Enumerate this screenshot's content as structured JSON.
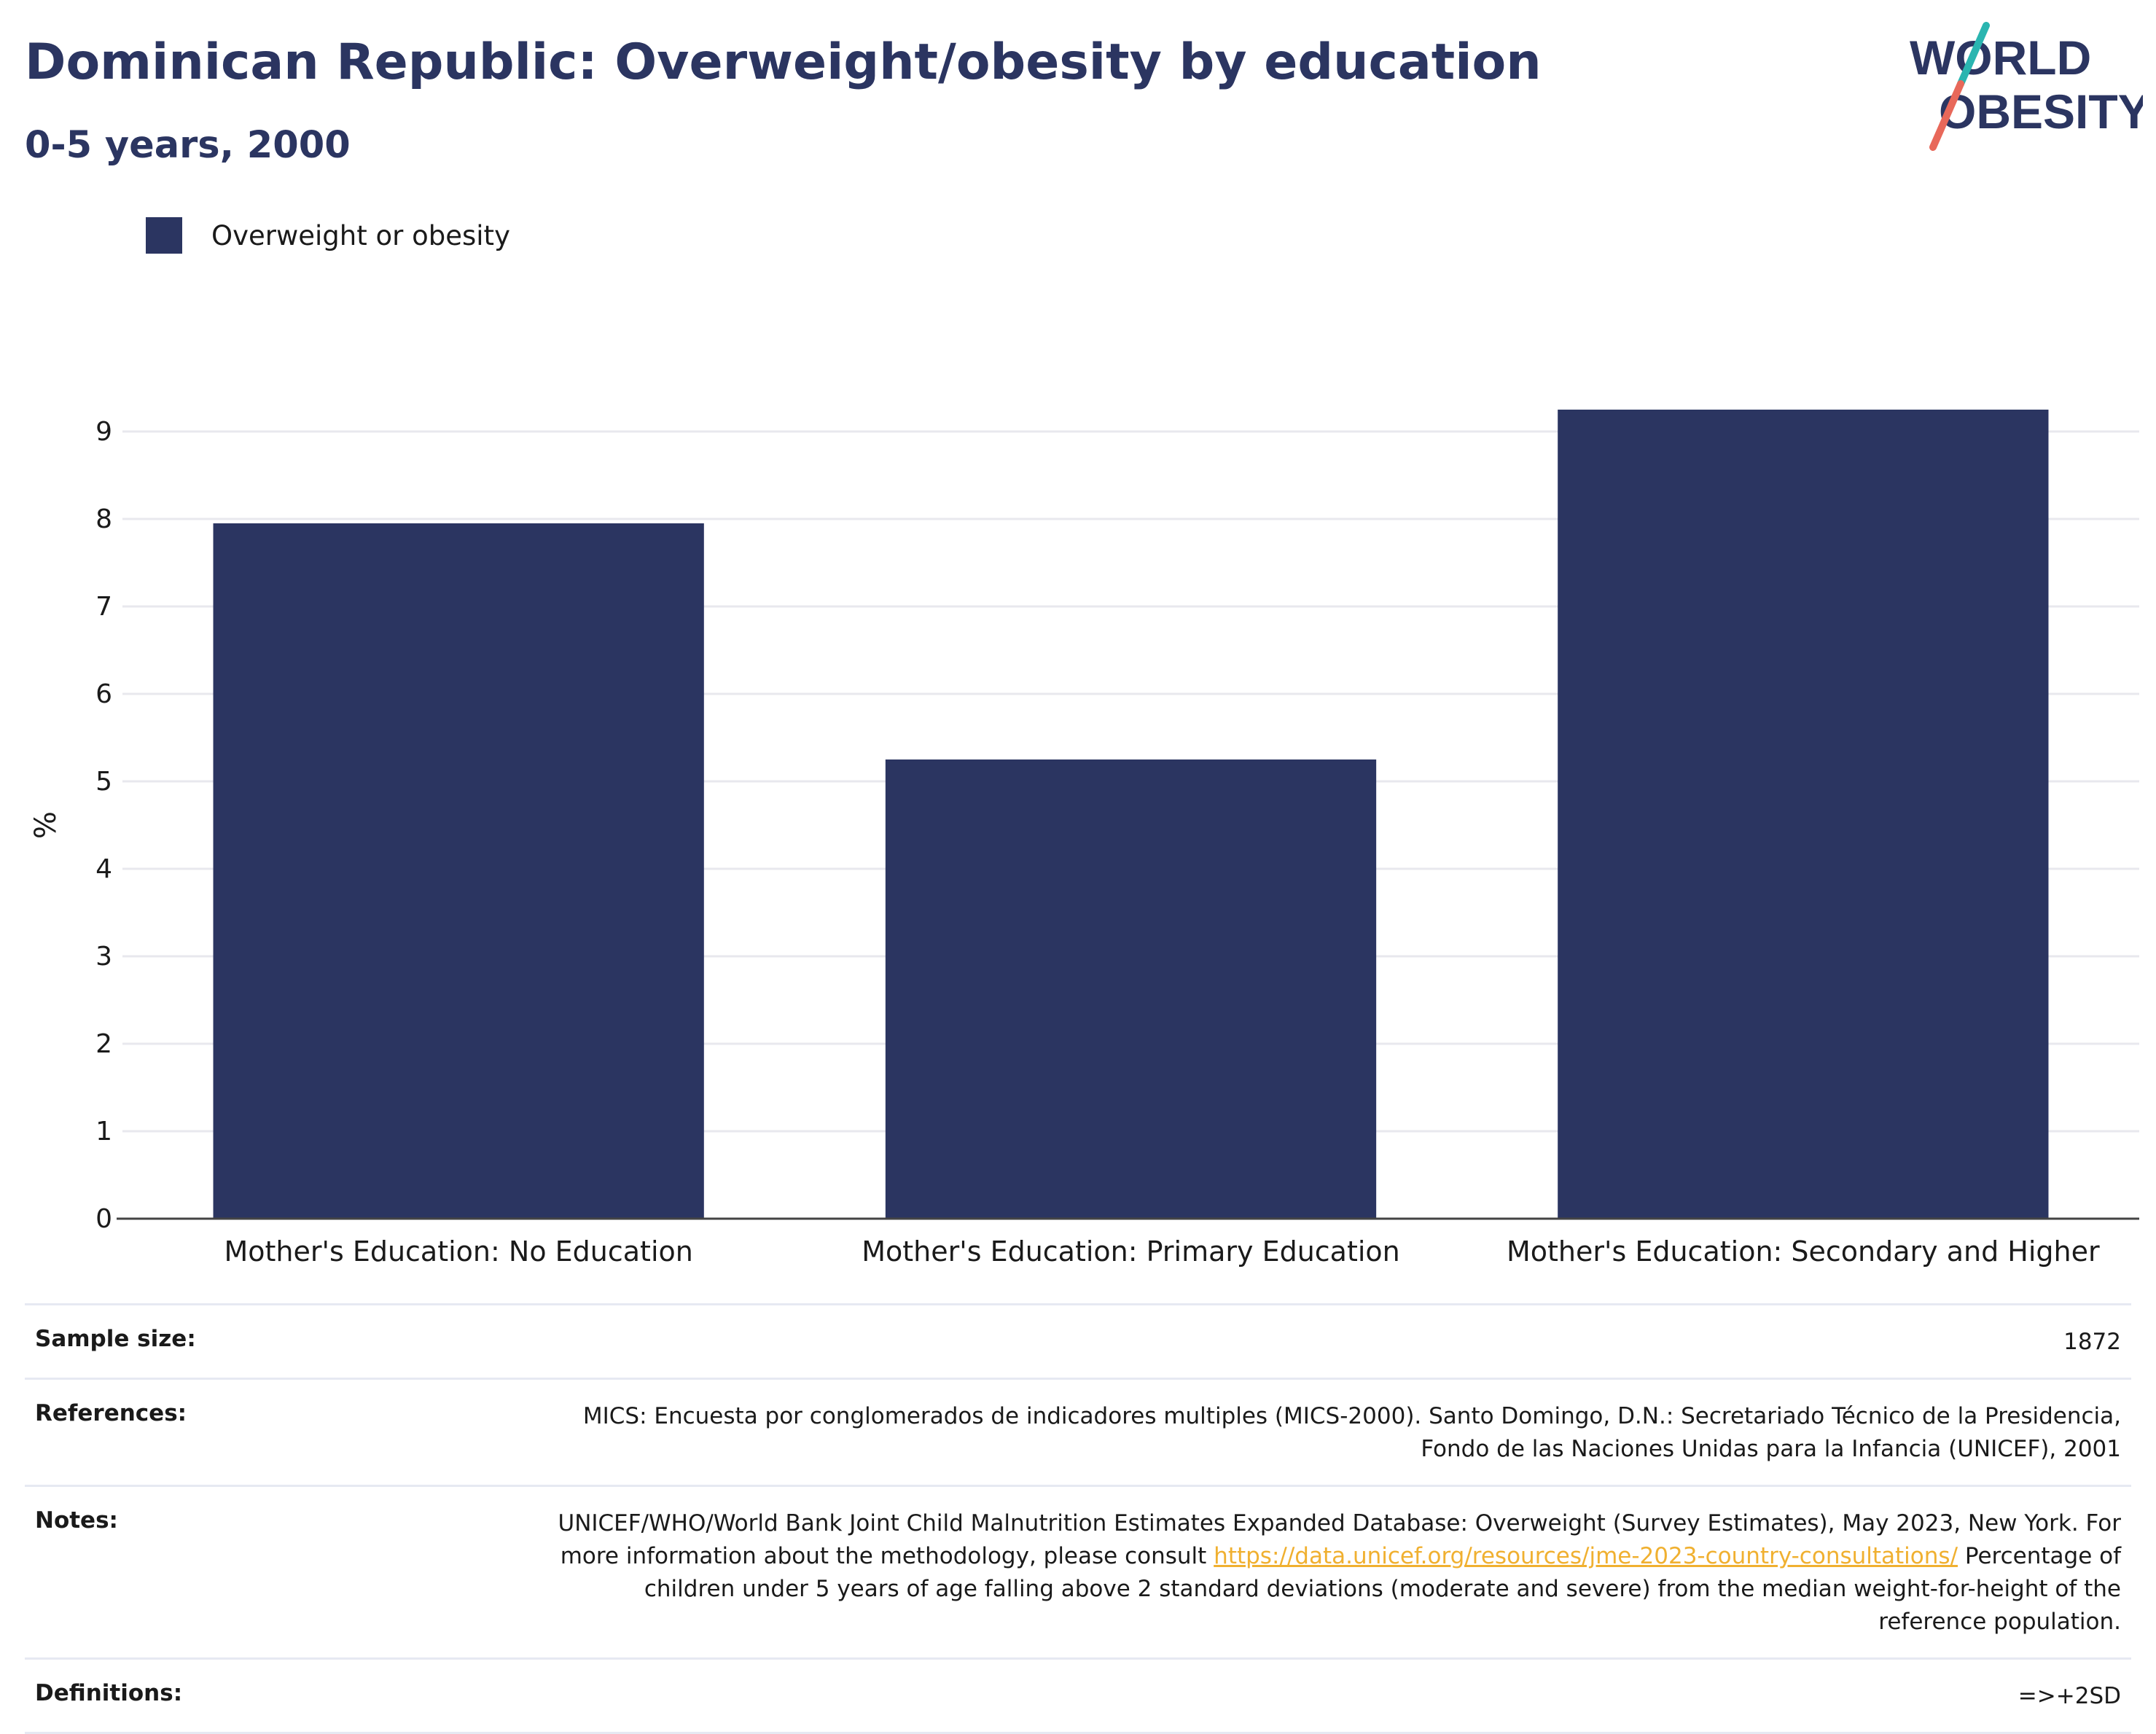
{
  "header": {
    "title": "Dominican Republic: Overweight/obesity by education",
    "subtitle": "0-5 years, 2000"
  },
  "logo": {
    "line1": "WORLD",
    "line2": "OBESITY",
    "colors": {
      "text": "#2b3561",
      "slash_top": "#2ab5b0",
      "slash_bottom": "#e8685a"
    }
  },
  "colors": {
    "bar": "#2b3561",
    "axis": "#444444",
    "grid": "#e8e8ee"
  },
  "chart_data": {
    "type": "bar",
    "categories": [
      "Mother's Education: No Education",
      "Mother's Education: Primary Education",
      "Mother's Education: Secondary and Higher"
    ],
    "series": [
      {
        "name": "Overweight or obesity",
        "values": [
          7.95,
          5.25,
          9.25
        ]
      }
    ],
    "ylabel": "%",
    "xlabel": "",
    "yticks": [
      0,
      1,
      2,
      3,
      4,
      5,
      6,
      7,
      8,
      9
    ],
    "ylim": [
      0,
      9.9
    ],
    "grid": true,
    "legend_position": "top-left"
  },
  "table": {
    "sample_size": {
      "label": "Sample size:",
      "value": "1872"
    },
    "references": {
      "label": "References:",
      "value": "MICS: Encuesta por conglomerados de indicadores multiples (MICS-2000). Santo Domingo, D.N.: Secretariado Técnico de la Presidencia, Fondo de las Naciones Unidas para la Infancia (UNICEF), 2001"
    },
    "notes": {
      "label": "Notes:",
      "text_before": "UNICEF/WHO/World Bank Joint Child Malnutrition Estimates Expanded Database: Overweight (Survey Estimates), May 2023, New York. For more information about the methodology, please consult ",
      "link": "https://data.unicef.org/resources/jme-2023-country-consultations/",
      "text_after": " Percentage of children under 5 years of age falling above 2 standard deviations (moderate and severe) from the median weight-for-height of the reference population."
    },
    "definitions": {
      "label": "Definitions:",
      "value": "=>+2SD"
    }
  }
}
